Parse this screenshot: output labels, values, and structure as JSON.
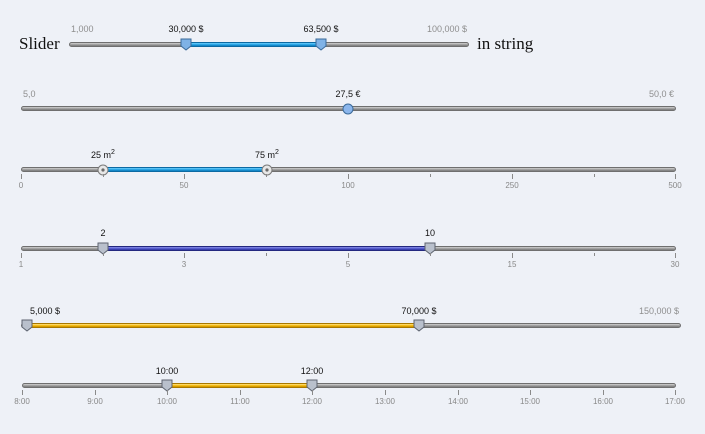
{
  "sliders": [
    {
      "type": "double",
      "prefix": "Slider",
      "suffix": "in string",
      "min_label": "1,000",
      "max_label": "100,000 $",
      "from": 30000,
      "to": 63500,
      "from_label": "30,000 $",
      "to_label": "63,500 $",
      "bar_color": "#1e9de0",
      "handle_style": "shield-blue"
    },
    {
      "type": "single",
      "min_label": "5,0",
      "max_label": "50,0 €",
      "value": 27.5,
      "value_label": "27,5 €",
      "handle_style": "circle-blue"
    },
    {
      "type": "double",
      "from_label_text": "25 m",
      "to_label_text": "75 m",
      "unit_sup": "2",
      "from": 25,
      "to": 75,
      "scale": [
        "0",
        "50",
        "100",
        "250",
        "500"
      ],
      "bar_color": "#1e9de0",
      "handle_style": "circle-gray"
    },
    {
      "type": "double",
      "from_label": "2",
      "to_label": "10",
      "from": 2,
      "to": 10,
      "scale": [
        "1",
        "3",
        "5",
        "15",
        "30"
      ],
      "bar_color": "#4a51c8",
      "handle_style": "shield-gray"
    },
    {
      "type": "double",
      "from_label": "5,000 $",
      "to_label": "70,000 $",
      "max_label": "150,000 $",
      "from": 5000,
      "to": 70000,
      "bar_color": "#f3b400",
      "handle_style": "shield-gray"
    },
    {
      "type": "double",
      "from_label": "10:00",
      "to_label": "12:00",
      "from": "10:00",
      "to": "12:00",
      "scale": [
        "8:00",
        "9:00",
        "10:00",
        "11:00",
        "12:00",
        "13:00",
        "14:00",
        "15:00",
        "16:00",
        "17:00"
      ],
      "bar_color": "#f3b400",
      "handle_style": "shield-gray"
    }
  ]
}
